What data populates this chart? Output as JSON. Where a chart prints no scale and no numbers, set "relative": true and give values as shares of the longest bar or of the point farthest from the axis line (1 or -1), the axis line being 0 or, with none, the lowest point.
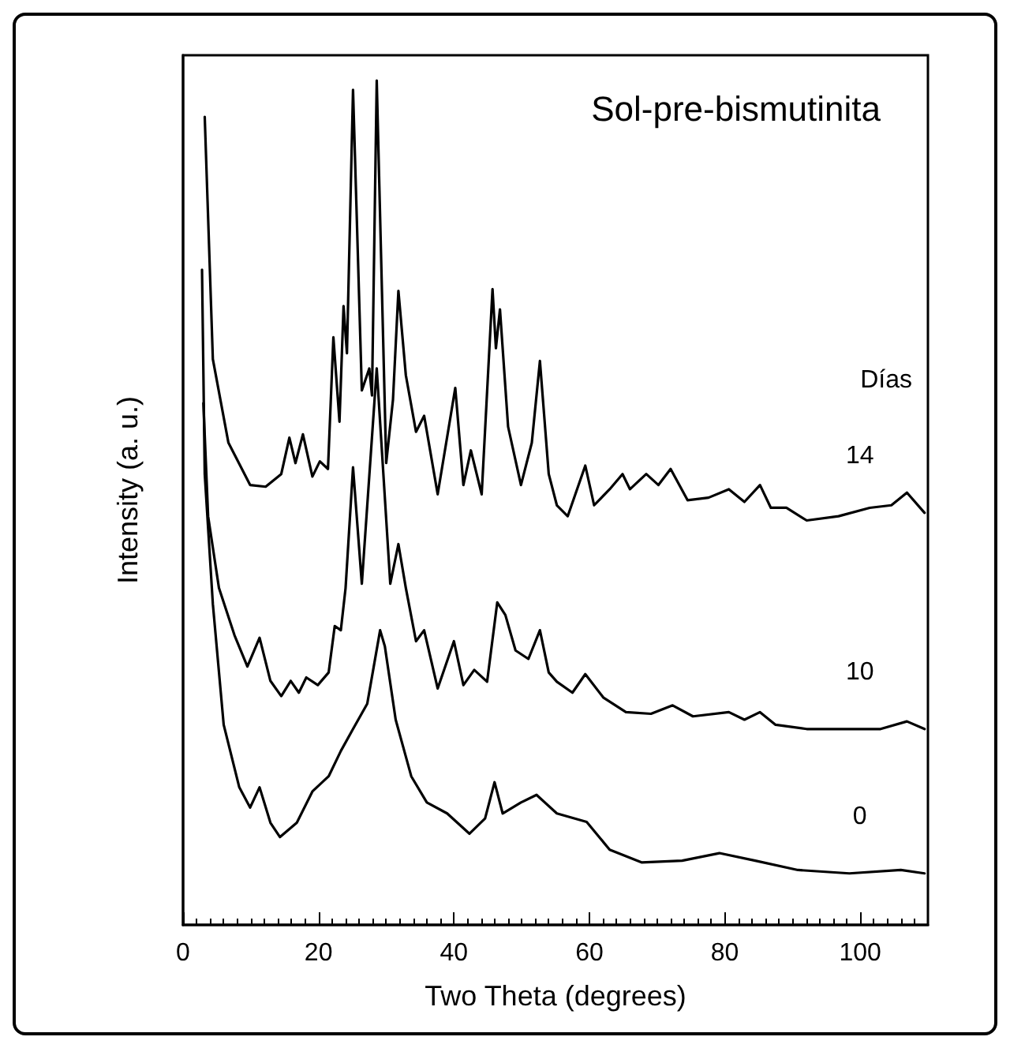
{
  "chart_data": {
    "type": "line",
    "title": "Sol-pre-bismutinita",
    "xlabel": "Two Theta (degrees)",
    "ylabel": "Intensity (a. u.)",
    "legend_title": "Días",
    "relative": true,
    "xlim": [
      0,
      110
    ],
    "xticks": [
      0,
      20,
      40,
      60,
      80,
      100
    ],
    "grid": false,
    "legend": false,
    "marker": "none",
    "line_style": "solid",
    "series": [
      {
        "name": "14",
        "color": "#000000",
        "x": [
          3.2,
          4.4,
          6.7,
          9.9,
          12.2,
          14.5,
          15.7,
          16.6,
          17.7,
          19.1,
          20.2,
          21.4,
          22.2,
          23.1,
          23.7,
          24.2,
          25.1,
          26.4,
          27.5,
          27.9,
          28.6,
          30.0,
          31.0,
          31.8,
          32.9,
          34.4,
          35.6,
          37.6,
          40.2,
          41.4,
          42.5,
          44.1,
          45.7,
          46.2,
          46.8,
          48.0,
          49.9,
          51.5,
          52.7,
          54.0,
          55.2,
          56.8,
          59.4,
          60.7,
          63.0,
          64.9,
          66.0,
          68.4,
          70.2,
          72.0,
          74.5,
          77.6,
          80.6,
          82.9,
          85.2,
          86.8,
          89.1,
          92.1,
          96.8,
          101.4,
          104.6,
          106.9,
          109.5
        ],
        "values": [
          0.957,
          0.67,
          0.571,
          0.521,
          0.519,
          0.534,
          0.577,
          0.547,
          0.581,
          0.531,
          0.549,
          0.54,
          0.696,
          0.596,
          0.733,
          0.677,
          0.989,
          0.633,
          0.659,
          0.627,
          1.0,
          0.547,
          0.622,
          0.751,
          0.651,
          0.584,
          0.603,
          0.51,
          0.636,
          0.521,
          0.562,
          0.51,
          0.753,
          0.683,
          0.729,
          0.59,
          0.521,
          0.571,
          0.668,
          0.534,
          0.497,
          0.484,
          0.544,
          0.497,
          0.516,
          0.534,
          0.516,
          0.534,
          0.521,
          0.54,
          0.503,
          0.506,
          0.516,
          0.501,
          0.521,
          0.494,
          0.494,
          0.479,
          0.484,
          0.494,
          0.497,
          0.512,
          0.488
        ]
      },
      {
        "name": "10",
        "color": "#000000",
        "x": [
          3.0,
          3.7,
          5.3,
          7.6,
          9.5,
          11.3,
          12.9,
          14.5,
          15.9,
          17.1,
          18.2,
          19.9,
          21.5,
          22.4,
          23.3,
          24.0,
          25.1,
          26.4,
          28.6,
          30.6,
          31.8,
          32.9,
          34.4,
          35.6,
          37.6,
          40.0,
          41.4,
          43.0,
          44.9,
          46.4,
          47.6,
          49.1,
          51.0,
          52.7,
          54.0,
          55.2,
          57.5,
          59.4,
          62.1,
          65.4,
          69.1,
          72.3,
          75.3,
          80.6,
          82.9,
          85.2,
          87.5,
          92.1,
          98.4,
          103.0,
          106.9,
          109.5
        ],
        "values": [
          0.618,
          0.484,
          0.399,
          0.343,
          0.306,
          0.34,
          0.289,
          0.271,
          0.289,
          0.275,
          0.293,
          0.284,
          0.299,
          0.354,
          0.349,
          0.399,
          0.542,
          0.404,
          0.659,
          0.404,
          0.451,
          0.399,
          0.336,
          0.349,
          0.28,
          0.336,
          0.284,
          0.302,
          0.288,
          0.382,
          0.367,
          0.325,
          0.315,
          0.349,
          0.299,
          0.288,
          0.275,
          0.297,
          0.269,
          0.252,
          0.25,
          0.26,
          0.247,
          0.252,
          0.243,
          0.252,
          0.237,
          0.232,
          0.232,
          0.232,
          0.241,
          0.232
        ]
      },
      {
        "name": "0",
        "color": "#000000",
        "x": [
          2.8,
          3.2,
          4.4,
          6.0,
          8.3,
          9.9,
          11.3,
          12.9,
          14.3,
          16.8,
          19.1,
          21.5,
          23.3,
          25.1,
          27.2,
          29.1,
          29.8,
          31.4,
          33.7,
          36.0,
          39.0,
          42.3,
          44.6,
          46.0,
          47.2,
          49.9,
          52.2,
          55.2,
          59.6,
          63.0,
          67.7,
          73.7,
          79.2,
          84.5,
          90.8,
          98.4,
          106.0,
          109.5
        ],
        "values": [
          0.776,
          0.534,
          0.38,
          0.237,
          0.163,
          0.139,
          0.163,
          0.121,
          0.104,
          0.121,
          0.158,
          0.176,
          0.206,
          0.232,
          0.262,
          0.349,
          0.33,
          0.243,
          0.176,
          0.145,
          0.132,
          0.108,
          0.126,
          0.169,
          0.132,
          0.145,
          0.154,
          0.132,
          0.122,
          0.089,
          0.074,
          0.076,
          0.085,
          0.076,
          0.065,
          0.061,
          0.065,
          0.061
        ]
      }
    ]
  }
}
